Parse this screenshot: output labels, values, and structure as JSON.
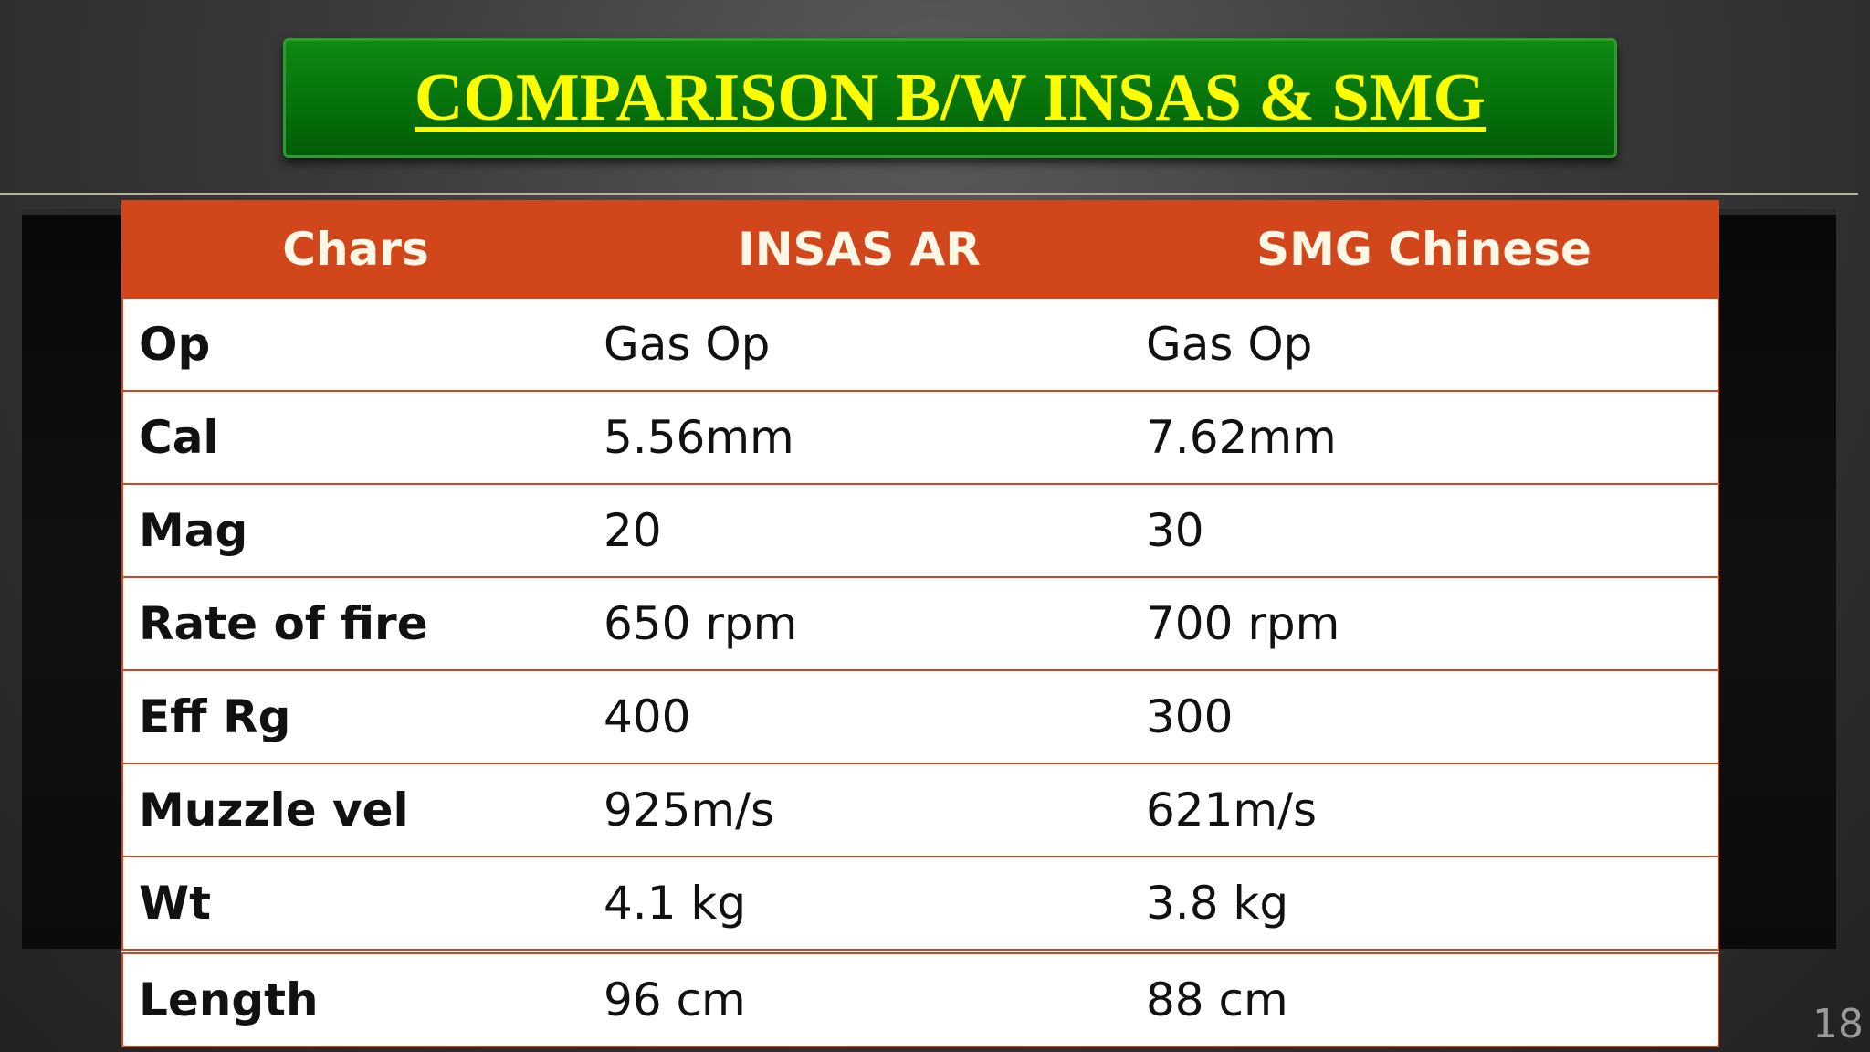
{
  "title": "COMPARISON B/W INSAS & SMG",
  "table": {
    "header": [
      "Chars",
      "INSAS AR",
      "SMG Chinese"
    ],
    "rows": [
      [
        "Op",
        "Gas Op",
        "Gas Op"
      ],
      [
        "Cal",
        "5.56mm",
        "7.62mm"
      ],
      [
        "Mag",
        "20",
        "30"
      ],
      [
        "Rate of fire",
        "650 rpm",
        "700 rpm"
      ],
      [
        "Eff Rg",
        "400",
        "300"
      ],
      [
        "Muzzle vel",
        "925m/s",
        "621m/s"
      ],
      [
        "Wt",
        "4.1 kg",
        "3.8 kg"
      ],
      [
        "Length",
        "96 cm",
        "88 cm"
      ]
    ]
  },
  "slide_number": "18"
}
